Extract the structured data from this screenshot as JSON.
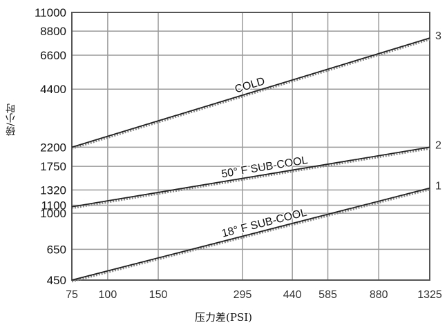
{
  "chart_data": {
    "type": "line",
    "xlabel": "压力差(PSI)",
    "ylabel": "磅/小时",
    "x_scale": "log",
    "y_scale": "log",
    "xlim": [
      75,
      1325
    ],
    "ylim": [
      450,
      11000
    ],
    "x_ticks": [
      75,
      100,
      150,
      295,
      440,
      585,
      880,
      1325
    ],
    "x_tick_labels": [
      "75",
      "100",
      "150",
      "295",
      "440",
      "585",
      "880",
      "1325"
    ],
    "y_ticks": [
      450,
      650,
      1000,
      1100,
      1320,
      1750,
      2200,
      4400,
      6600,
      8800,
      11000
    ],
    "y_tick_labels": [
      "450",
      "650",
      "1000",
      "1100",
      "1320",
      "1750",
      "2200",
      "4400",
      "6600",
      "8800",
      "11000"
    ],
    "grid": true,
    "series": [
      {
        "name": "COLD",
        "end_label": "3",
        "x": [
          75,
          1325
        ],
        "y": [
          2200,
          8100
        ]
      },
      {
        "name": "50° F SUB-COOL",
        "end_label": "2",
        "x": [
          75,
          1325
        ],
        "y": [
          1080,
          2200
        ]
      },
      {
        "name": "18° F SUB-COOL",
        "end_label": "1",
        "x": [
          75,
          1325
        ],
        "y": [
          450,
          1350
        ]
      }
    ]
  }
}
